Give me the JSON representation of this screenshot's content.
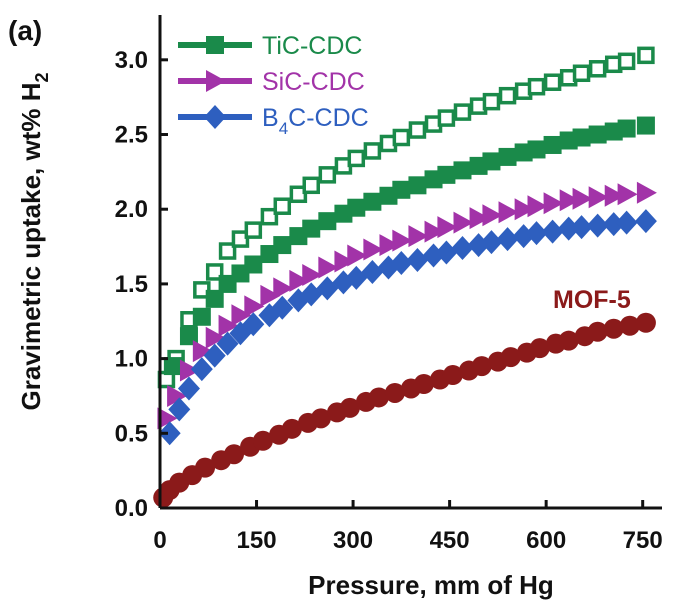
{
  "chart_data": {
    "type": "scatter",
    "panel_label": "(a)",
    "xlabel": "Pressure, mm of Hg",
    "ylabel": "Gravimetric uptake, wt% H",
    "ylabel_sub": "2",
    "xlim": [
      0,
      780
    ],
    "ylim": [
      0,
      3.3
    ],
    "xticks": [
      0,
      150,
      300,
      450,
      600,
      750
    ],
    "yticks": [
      0.0,
      0.5,
      1.0,
      1.5,
      2.0,
      2.5,
      3.0
    ],
    "grid": false,
    "legend_position": "top-left",
    "legend": [
      {
        "text": "TiC-CDC",
        "sub": "",
        "after": "",
        "color": "#1a8a4a",
        "marker": "square"
      },
      {
        "text": "SiC-CDC",
        "sub": "",
        "after": "",
        "color": "#a233a8",
        "marker": "triangle-right"
      },
      {
        "text": "B",
        "sub": "4",
        "after": "C-CDC",
        "color": "#2e5fbf",
        "marker": "diamond"
      }
    ],
    "annotation": {
      "text": "MOF-5",
      "color": "#8b1a1a"
    },
    "series": [
      {
        "name": "TiC-CDC",
        "marker": "square-open",
        "color": "#1a8a4a",
        "points": [
          [
            10,
            0.86
          ],
          [
            25,
            1.0
          ],
          [
            45,
            1.26
          ],
          [
            65,
            1.46
          ],
          [
            85,
            1.58
          ],
          [
            105,
            1.72
          ],
          [
            125,
            1.8
          ],
          [
            145,
            1.86
          ],
          [
            170,
            1.95
          ],
          [
            190,
            2.02
          ],
          [
            215,
            2.1
          ],
          [
            235,
            2.16
          ],
          [
            260,
            2.23
          ],
          [
            285,
            2.29
          ],
          [
            305,
            2.34
          ],
          [
            330,
            2.39
          ],
          [
            355,
            2.44
          ],
          [
            375,
            2.48
          ],
          [
            400,
            2.53
          ],
          [
            425,
            2.57
          ],
          [
            445,
            2.61
          ],
          [
            470,
            2.65
          ],
          [
            495,
            2.69
          ],
          [
            515,
            2.72
          ],
          [
            540,
            2.76
          ],
          [
            565,
            2.79
          ],
          [
            585,
            2.82
          ],
          [
            610,
            2.85
          ],
          [
            635,
            2.88
          ],
          [
            655,
            2.91
          ],
          [
            680,
            2.94
          ],
          [
            705,
            2.97
          ],
          [
            725,
            2.99
          ],
          [
            755,
            3.03
          ]
        ]
      },
      {
        "name": "TiC-CDC",
        "marker": "square-filled",
        "color": "#1a8a4a",
        "points": [
          [
            20,
            0.95
          ],
          [
            45,
            1.15
          ],
          [
            65,
            1.28
          ],
          [
            85,
            1.4
          ],
          [
            105,
            1.5
          ],
          [
            125,
            1.57
          ],
          [
            145,
            1.63
          ],
          [
            170,
            1.7
          ],
          [
            190,
            1.76
          ],
          [
            215,
            1.82
          ],
          [
            235,
            1.87
          ],
          [
            260,
            1.92
          ],
          [
            285,
            1.97
          ],
          [
            305,
            2.01
          ],
          [
            330,
            2.05
          ],
          [
            355,
            2.09
          ],
          [
            375,
            2.13
          ],
          [
            400,
            2.16
          ],
          [
            425,
            2.2
          ],
          [
            445,
            2.23
          ],
          [
            470,
            2.26
          ],
          [
            495,
            2.29
          ],
          [
            515,
            2.32
          ],
          [
            540,
            2.35
          ],
          [
            565,
            2.38
          ],
          [
            585,
            2.4
          ],
          [
            610,
            2.43
          ],
          [
            635,
            2.46
          ],
          [
            655,
            2.48
          ],
          [
            680,
            2.5
          ],
          [
            705,
            2.52
          ],
          [
            725,
            2.54
          ],
          [
            755,
            2.56
          ]
        ]
      },
      {
        "name": "SiC-CDC",
        "marker": "triangle-right",
        "color": "#a233a8",
        "points": [
          [
            10,
            0.6
          ],
          [
            25,
            0.75
          ],
          [
            45,
            0.92
          ],
          [
            65,
            1.05
          ],
          [
            85,
            1.14
          ],
          [
            105,
            1.22
          ],
          [
            125,
            1.29
          ],
          [
            145,
            1.35
          ],
          [
            170,
            1.42
          ],
          [
            190,
            1.47
          ],
          [
            215,
            1.52
          ],
          [
            235,
            1.56
          ],
          [
            260,
            1.61
          ],
          [
            285,
            1.65
          ],
          [
            305,
            1.69
          ],
          [
            330,
            1.73
          ],
          [
            355,
            1.76
          ],
          [
            375,
            1.79
          ],
          [
            400,
            1.82
          ],
          [
            425,
            1.85
          ],
          [
            445,
            1.88
          ],
          [
            470,
            1.91
          ],
          [
            495,
            1.94
          ],
          [
            515,
            1.96
          ],
          [
            540,
            1.98
          ],
          [
            565,
            2.0
          ],
          [
            585,
            2.02
          ],
          [
            610,
            2.04
          ],
          [
            635,
            2.06
          ],
          [
            655,
            2.07
          ],
          [
            680,
            2.08
          ],
          [
            705,
            2.09
          ],
          [
            725,
            2.1
          ],
          [
            755,
            2.11
          ]
        ]
      },
      {
        "name": "B4C-CDC",
        "marker": "diamond",
        "color": "#2e5fbf",
        "points": [
          [
            15,
            0.5
          ],
          [
            30,
            0.66
          ],
          [
            45,
            0.8
          ],
          [
            65,
            0.93
          ],
          [
            85,
            1.02
          ],
          [
            105,
            1.1
          ],
          [
            125,
            1.17
          ],
          [
            145,
            1.23
          ],
          [
            170,
            1.29
          ],
          [
            190,
            1.34
          ],
          [
            215,
            1.39
          ],
          [
            235,
            1.43
          ],
          [
            260,
            1.47
          ],
          [
            285,
            1.51
          ],
          [
            305,
            1.54
          ],
          [
            330,
            1.58
          ],
          [
            355,
            1.61
          ],
          [
            375,
            1.64
          ],
          [
            400,
            1.66
          ],
          [
            425,
            1.69
          ],
          [
            445,
            1.71
          ],
          [
            470,
            1.74
          ],
          [
            495,
            1.76
          ],
          [
            515,
            1.78
          ],
          [
            540,
            1.8
          ],
          [
            565,
            1.82
          ],
          [
            585,
            1.84
          ],
          [
            610,
            1.85
          ],
          [
            635,
            1.87
          ],
          [
            655,
            1.88
          ],
          [
            680,
            1.89
          ],
          [
            705,
            1.9
          ],
          [
            725,
            1.91
          ],
          [
            755,
            1.92
          ]
        ]
      },
      {
        "name": "MOF-5",
        "marker": "circle",
        "color": "#8b1a1a",
        "points": [
          [
            5,
            0.07
          ],
          [
            15,
            0.12
          ],
          [
            30,
            0.17
          ],
          [
            50,
            0.22
          ],
          [
            70,
            0.27
          ],
          [
            95,
            0.32
          ],
          [
            115,
            0.36
          ],
          [
            140,
            0.41
          ],
          [
            160,
            0.45
          ],
          [
            185,
            0.49
          ],
          [
            205,
            0.53
          ],
          [
            230,
            0.57
          ],
          [
            250,
            0.6
          ],
          [
            275,
            0.64
          ],
          [
            295,
            0.67
          ],
          [
            320,
            0.71
          ],
          [
            340,
            0.74
          ],
          [
            365,
            0.77
          ],
          [
            390,
            0.8
          ],
          [
            410,
            0.83
          ],
          [
            435,
            0.86
          ],
          [
            455,
            0.89
          ],
          [
            480,
            0.92
          ],
          [
            500,
            0.95
          ],
          [
            525,
            0.98
          ],
          [
            545,
            1.01
          ],
          [
            570,
            1.04
          ],
          [
            590,
            1.07
          ],
          [
            615,
            1.1
          ],
          [
            635,
            1.12
          ],
          [
            660,
            1.15
          ],
          [
            680,
            1.18
          ],
          [
            705,
            1.2
          ],
          [
            730,
            1.22
          ],
          [
            755,
            1.24
          ]
        ]
      }
    ]
  }
}
